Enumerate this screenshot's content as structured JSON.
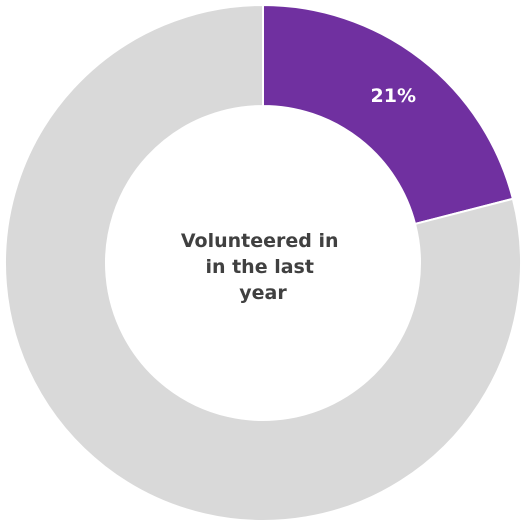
{
  "chart_data": {
    "type": "pie",
    "style": "donut",
    "center_label_lines": [
      "Volunteered in",
      "in the last",
      "year"
    ],
    "slices": [
      {
        "label": "21%",
        "value": 21,
        "color": "#7030a0"
      },
      {
        "label": "",
        "value": 79,
        "color": "#d9d9d9"
      }
    ]
  }
}
